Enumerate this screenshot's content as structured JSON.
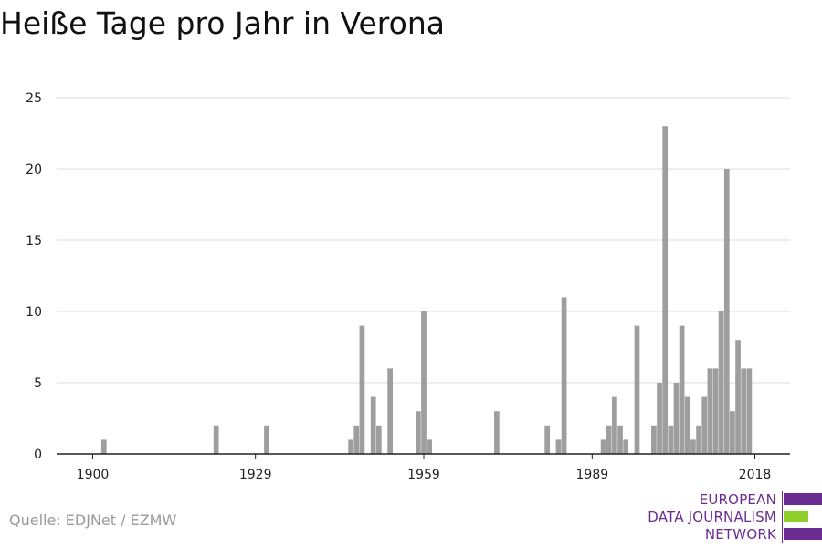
{
  "title": "Heiße Tage pro Jahr in Verona",
  "source": "Quelle: EDJNet / EZMW",
  "logo": {
    "lines": [
      "EUROPEAN",
      "DATA JOURNALISM",
      "NETWORK"
    ],
    "colors": {
      "purple": "#6a2c91",
      "green": "#8fd12a"
    }
  },
  "colors": {
    "bar": "#9e9e9e",
    "grid": "#dddddd",
    "axis": "#222222"
  },
  "chart_data": {
    "type": "bar",
    "title": "Heiße Tage pro Jahr in Verona",
    "xlabel": "",
    "ylabel": "",
    "xlim": [
      1900,
      2018
    ],
    "ylim": [
      0,
      25
    ],
    "yticks": [
      0,
      5,
      10,
      15,
      20,
      25
    ],
    "xticks": [
      1900,
      1929,
      1959,
      1989,
      2018
    ],
    "grid": true,
    "years": [
      1902,
      1922,
      1931,
      1946,
      1947,
      1948,
      1950,
      1951,
      1953,
      1958,
      1959,
      1960,
      1972,
      1981,
      1983,
      1984,
      1991,
      1992,
      1993,
      1994,
      1995,
      1997,
      2000,
      2001,
      2002,
      2003,
      2004,
      2005,
      2006,
      2007,
      2008,
      2009,
      2010,
      2011,
      2012,
      2013,
      2014,
      2015,
      2016,
      2017
    ],
    "values": [
      1,
      2,
      2,
      1,
      2,
      9,
      4,
      2,
      6,
      3,
      10,
      1,
      3,
      2,
      1,
      11,
      1,
      2,
      4,
      2,
      1,
      9,
      2,
      5,
      23,
      2,
      5,
      9,
      4,
      1,
      2,
      4,
      6,
      6,
      10,
      20,
      3,
      8,
      6,
      6
    ]
  }
}
